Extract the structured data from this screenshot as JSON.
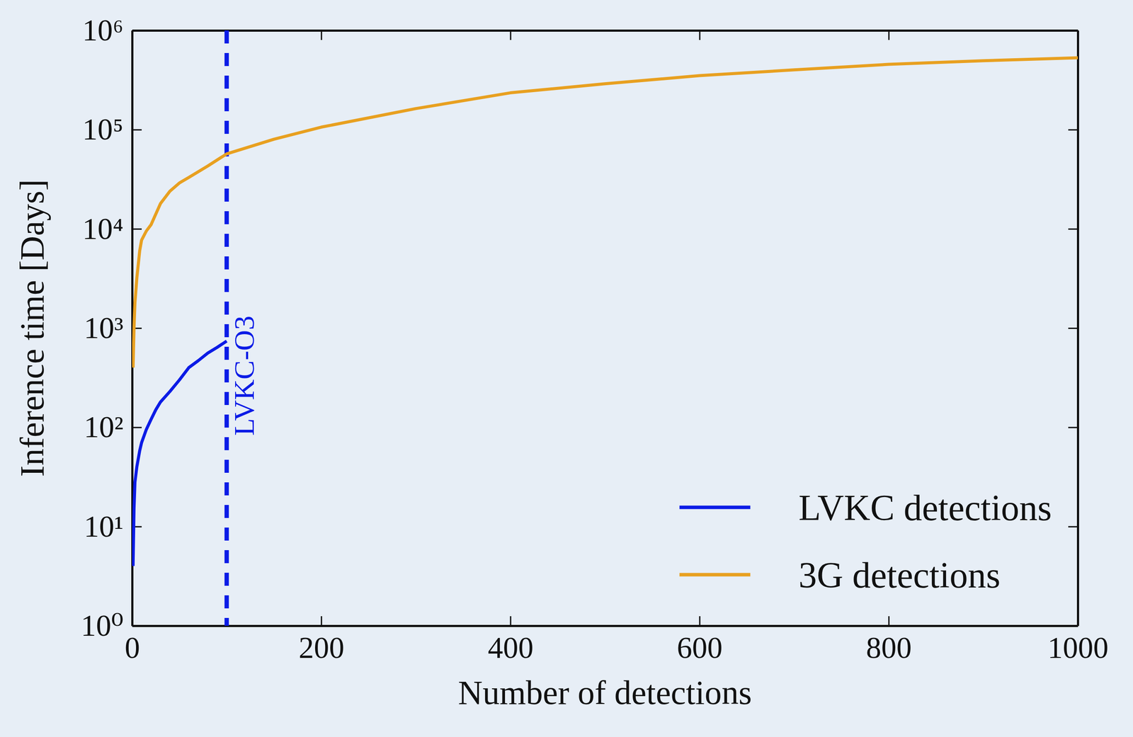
{
  "chart_data": {
    "type": "line",
    "x_label": "Number of detections",
    "y_label": "Inference time [Days]",
    "log": "y",
    "legend": "lower right",
    "xlim": [
      0,
      1000
    ],
    "ylim": [
      1,
      1000000
    ],
    "xticks": [
      0,
      200,
      400,
      600,
      800,
      1000
    ],
    "yticks": [
      {
        "value": 1,
        "label": "10⁰"
      },
      {
        "value": 10,
        "label": "10¹"
      },
      {
        "value": 100,
        "label": "10²"
      },
      {
        "value": 1000,
        "label": "10³"
      },
      {
        "value": 10000,
        "label": "10⁴"
      },
      {
        "value": 100000,
        "label": "10⁵"
      },
      {
        "value": 1000000,
        "label": "10⁶"
      }
    ],
    "series": [
      {
        "name": "LVKC detections",
        "color": "#0b1be6",
        "x": [
          1,
          2,
          3,
          5,
          8,
          10,
          15,
          20,
          25,
          30,
          40,
          50,
          60,
          70,
          80,
          90,
          100
        ],
        "values": [
          4,
          15,
          28,
          40,
          58,
          70,
          95,
          120,
          150,
          180,
          230,
          300,
          400,
          470,
          560,
          640,
          740
        ]
      },
      {
        "name": "3G detections",
        "color": "#e8a020",
        "x": [
          1,
          2,
          3,
          5,
          8,
          10,
          15,
          20,
          30,
          40,
          50,
          60,
          80,
          100,
          150,
          200,
          300,
          400,
          500,
          600,
          700,
          800,
          900,
          1000
        ],
        "values": [
          400,
          1000,
          1800,
          3200,
          6000,
          7700,
          9500,
          11000,
          18000,
          24000,
          29000,
          33000,
          43000,
          57000,
          80000,
          106000,
          163000,
          235000,
          290000,
          350000,
          400000,
          455000,
          495000,
          530000
        ]
      }
    ],
    "annotations": [
      {
        "text": "LVKC-O3",
        "x": 100,
        "color": "#0b1be6",
        "line_style": "dashed"
      }
    ]
  }
}
